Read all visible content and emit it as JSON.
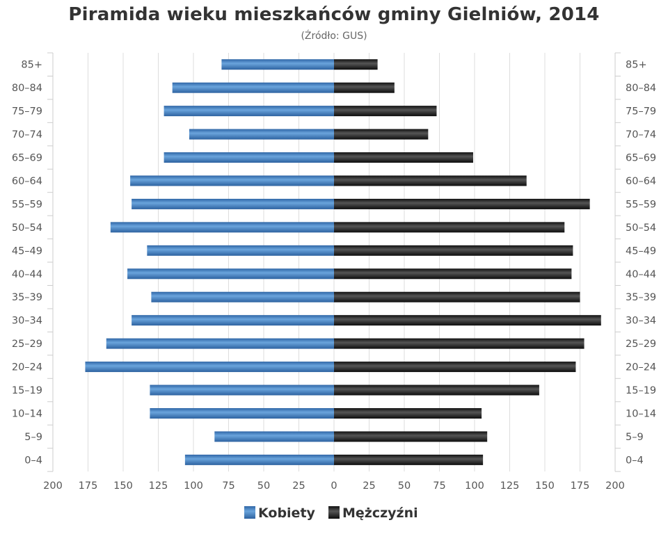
{
  "chart_data": {
    "type": "bar",
    "title": "Piramida wieku mieszkańców gminy Gielniów, 2014",
    "subtitle": "(Źródło: GUS)",
    "categories": [
      "85+",
      "80–84",
      "75–79",
      "70–74",
      "65–69",
      "60–64",
      "55–59",
      "50–54",
      "45–49",
      "40–44",
      "35–39",
      "30–34",
      "25–29",
      "20–24",
      "15–19",
      "10–14",
      "5–9",
      "0–4"
    ],
    "series": [
      {
        "name": "Kobiety",
        "values": [
          80,
          115,
          121,
          103,
          121,
          145,
          144,
          159,
          133,
          147,
          130,
          144,
          162,
          177,
          131,
          131,
          85,
          106
        ]
      },
      {
        "name": "Mężczyźni",
        "values": [
          31,
          43,
          73,
          67,
          99,
          137,
          182,
          164,
          170,
          169,
          175,
          190,
          178,
          172,
          146,
          105,
          109,
          106
        ]
      }
    ],
    "xlim": [
      -200,
      200
    ],
    "x_ticks": [
      "200",
      "175",
      "150",
      "125",
      "100",
      "75",
      "50",
      "25",
      "0",
      "25",
      "50",
      "75",
      "100",
      "125",
      "150",
      "175",
      "200"
    ],
    "grid": true,
    "legend_position": "bottom-center",
    "colors": {
      "Kobiety": "#3f7fc1",
      "Mężczyźni": "#222222"
    }
  }
}
